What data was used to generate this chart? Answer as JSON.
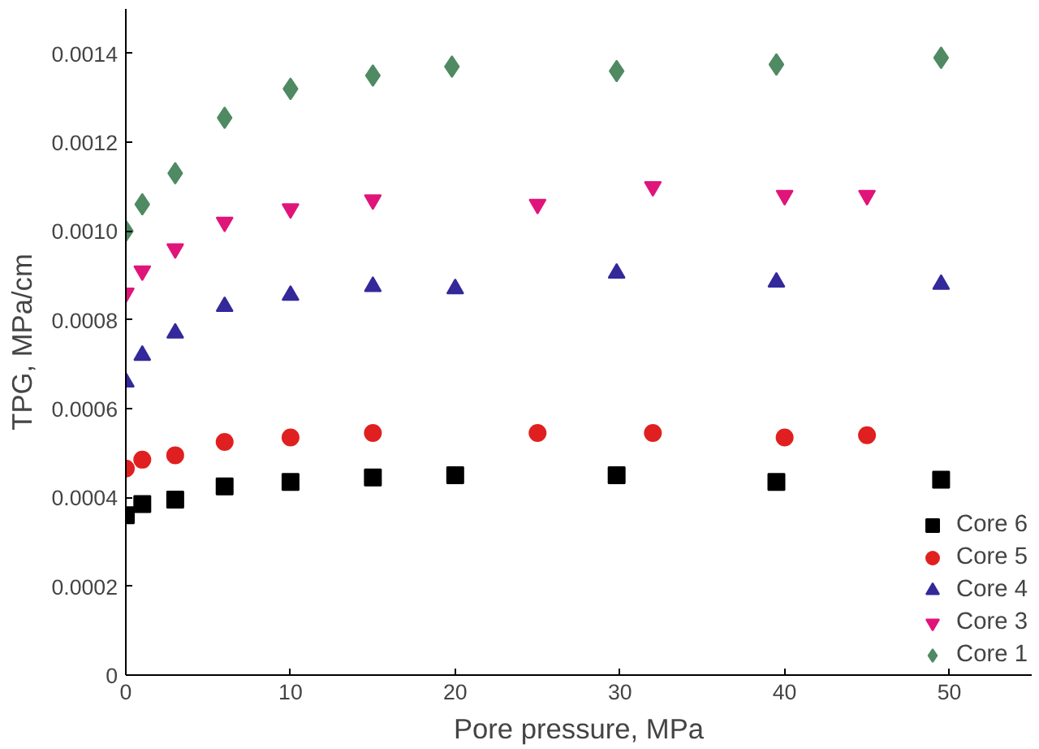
{
  "chart_data": {
    "type": "scatter",
    "xlabel": "Pore pressure, MPa",
    "ylabel": "TPG, MPa/cm",
    "xlim": [
      0,
      55
    ],
    "ylim": [
      0,
      0.0015
    ],
    "xticks": [
      0,
      10,
      20,
      30,
      40,
      50
    ],
    "yticks": [
      0,
      {
        "value": 0.0002,
        "label": "0.0002"
      },
      {
        "value": 0.0004,
        "label": "0.0004"
      },
      {
        "value": 0.0006,
        "label": "0.0006"
      },
      {
        "value": 0.0008,
        "label": "0.0008"
      },
      {
        "value": 0.001,
        "label": "0.0010"
      },
      {
        "value": 0.0012,
        "label": "0.0012"
      },
      {
        "value": 0.0014,
        "label": "0.0014"
      }
    ],
    "grid": false,
    "legend": "bottom right",
    "series": [
      {
        "name": "Core 6",
        "color": "#000000",
        "marker": "square",
        "x": [
          0,
          1,
          3,
          6,
          10,
          15,
          20,
          29.8,
          39.5,
          49.5
        ],
        "values": [
          0.00036,
          0.000385,
          0.000395,
          0.000425,
          0.000435,
          0.000445,
          0.00045,
          0.00045,
          0.000435,
          0.00044
        ]
      },
      {
        "name": "Core 5",
        "color": "#e02020",
        "marker": "circle",
        "x": [
          0,
          1,
          3,
          6,
          10,
          15,
          25,
          32,
          40,
          45
        ],
        "values": [
          0.000465,
          0.000485,
          0.000495,
          0.000525,
          0.000535,
          0.000545,
          0.000545,
          0.000545,
          0.000535,
          0.00054
        ]
      },
      {
        "name": "Core 4",
        "color": "#33299a",
        "marker": "triangle",
        "x": [
          0,
          1,
          3,
          6,
          10,
          15,
          20,
          29.8,
          39.5,
          49.5
        ],
        "values": [
          0.00066,
          0.00072,
          0.00077,
          0.00083,
          0.000855,
          0.000875,
          0.00087,
          0.000905,
          0.000885,
          0.00088
        ]
      },
      {
        "name": "Core 3",
        "color": "#e0157a",
        "marker": "triangle",
        "x": [
          0,
          1,
          3,
          6,
          10,
          15,
          25,
          32,
          40,
          45
        ],
        "values": [
          0.00086,
          0.00091,
          0.00096,
          0.00102,
          0.00105,
          0.00107,
          0.00106,
          0.0011,
          0.00108,
          0.00108
        ]
      },
      {
        "name": "Core 1",
        "color": "#4f8a63",
        "marker": "diamond",
        "x": [
          0,
          1,
          3,
          6,
          10,
          15,
          19.8,
          29.8,
          39.5,
          49.5
        ],
        "values": [
          0.001,
          0.00106,
          0.00113,
          0.001255,
          0.00132,
          0.00135,
          0.00137,
          0.00136,
          0.001375,
          0.00139
        ]
      }
    ]
  }
}
